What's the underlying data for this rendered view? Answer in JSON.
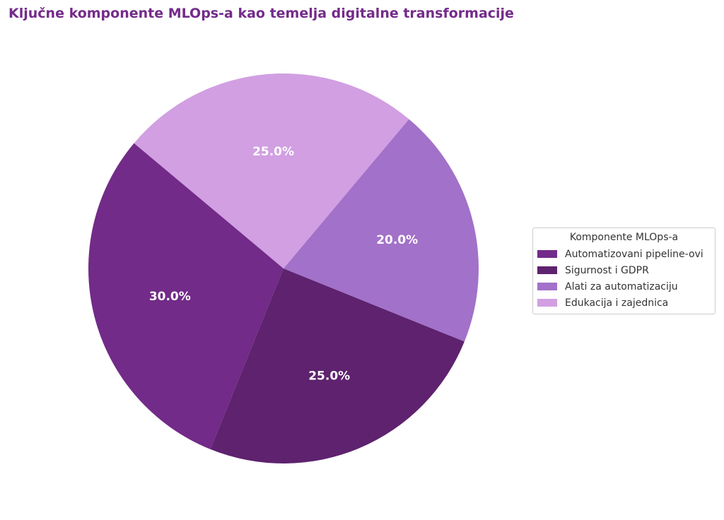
{
  "title": "Ključne komponente MLOps-a kao temelja digitalne transformacije",
  "title_color": "#742b8a",
  "chart_data": {
    "type": "pie",
    "title": "Ključne komponente MLOps-a kao temelja digitalne transformacije",
    "categories": [
      "Automatizovani pipeline-ovi",
      "Sigurnost i GDPR",
      "Alati za automatizaciju",
      "Edukacija i zajednica"
    ],
    "values": [
      30,
      25,
      20,
      25
    ],
    "labels": [
      "30.0%",
      "25.0%",
      "20.0%",
      "25.0%"
    ],
    "colors": [
      "#722b88",
      "#5e226e",
      "#a271c9",
      "#d19fe2"
    ],
    "start_angle_deg": 140,
    "direction": "counterclockwise",
    "legend": {
      "title": "Komponente MLOps-a",
      "placement": "right"
    }
  }
}
